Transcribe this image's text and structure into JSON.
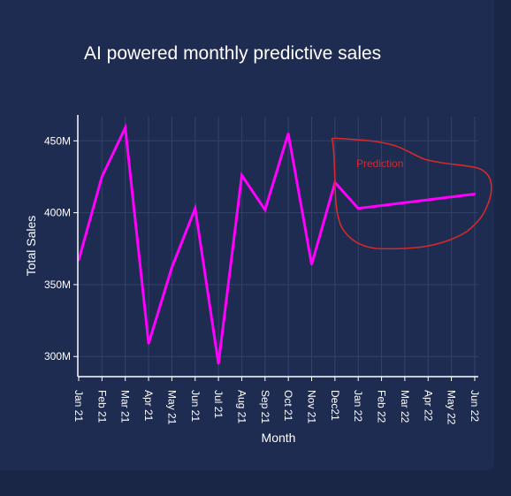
{
  "chart_data": {
    "type": "line",
    "title": "AI powered monthly predictive sales",
    "xlabel": "Month",
    "ylabel": "Total Sales",
    "categories": [
      "Jan 21",
      "Feb 21",
      "Mar 21",
      "Apr 21",
      "May 21",
      "Jun 21",
      "Jul 21",
      "Aug 21",
      "Sep 21",
      "Oct 21",
      "Nov 21",
      "Dec21",
      "Jan 22",
      "Feb 22",
      "Mar 22",
      "Apr 22",
      "May 22",
      "Jun 22"
    ],
    "y_ticks": [
      {
        "value": 300000000,
        "label": "300M"
      },
      {
        "value": 350000000,
        "label": "350M"
      },
      {
        "value": 400000000,
        "label": "400M"
      },
      {
        "value": 450000000,
        "label": "450M"
      }
    ],
    "ylim": [
      286000000,
      468000000
    ],
    "grid": true,
    "series": [
      {
        "color": "#ff00ff",
        "values": [
          367000000,
          425000000,
          459000000,
          309000000,
          362000000,
          403000000,
          295000000,
          426000000,
          402000000,
          455000000,
          364000000,
          421000000,
          403000000,
          405000000,
          407000000,
          409000000,
          411000000,
          413000000
        ]
      }
    ],
    "annotations": [
      {
        "text": "Prediction",
        "color": "#d42a2a",
        "type": "freehand-circle",
        "covers": [
          "Dec21",
          "Jun 22"
        ]
      }
    ]
  },
  "colors": {
    "background": "#1a2645",
    "card": "#1e2c52",
    "grid": "#34426a",
    "axis": "#ffffff",
    "line": "#ff00ff",
    "annotation": "#d42a2a"
  }
}
